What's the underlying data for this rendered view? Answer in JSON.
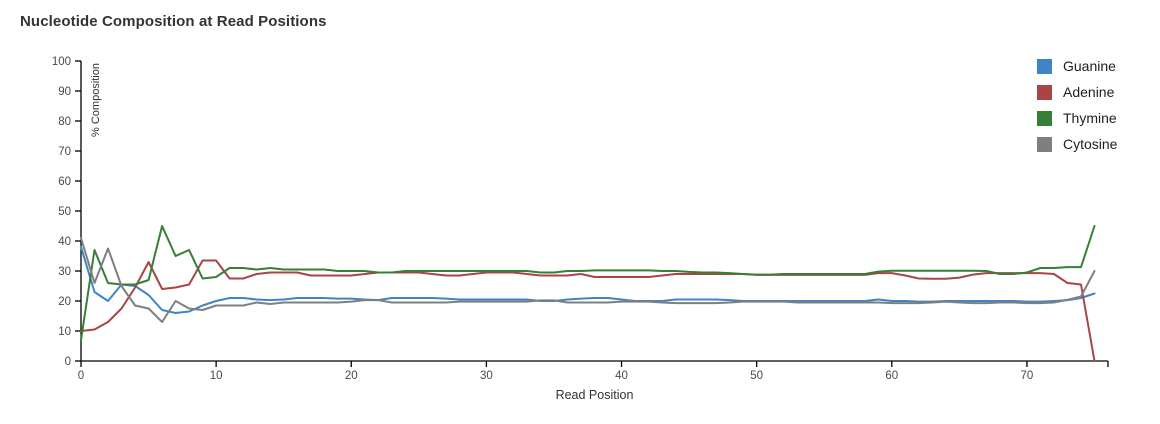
{
  "header": {
    "title": "Nucleotide Composition at Read Positions"
  },
  "axes": {
    "x": {
      "label": "Read Position",
      "ticks": [
        0,
        10,
        20,
        30,
        40,
        50,
        60,
        70
      ],
      "end_tick": 76,
      "min": 0,
      "max": 76
    },
    "y": {
      "label": "% Composition",
      "ticks": [
        0,
        10,
        20,
        30,
        40,
        50,
        60,
        70,
        80,
        90,
        100
      ],
      "min": 0,
      "max": 100
    }
  },
  "colors": {
    "axis_line": "#000000",
    "tick_text": "#494949",
    "axis_title_text": "#333333",
    "title_text": "#333333",
    "legend_text": "#212121"
  },
  "chart_data": {
    "type": "line",
    "title": "Nucleotide Composition at Read Positions",
    "xlabel": "Read Position",
    "ylabel": "% Composition",
    "xlim": [
      0,
      76
    ],
    "ylim": [
      0,
      100
    ],
    "grid": false,
    "legend_position": "top-right",
    "x": [
      0,
      1,
      2,
      3,
      4,
      5,
      6,
      7,
      8,
      9,
      10,
      11,
      12,
      13,
      14,
      15,
      16,
      17,
      18,
      19,
      20,
      21,
      22,
      23,
      24,
      25,
      26,
      27,
      28,
      29,
      30,
      31,
      32,
      33,
      34,
      35,
      36,
      37,
      38,
      39,
      40,
      41,
      42,
      43,
      44,
      45,
      46,
      47,
      48,
      49,
      50,
      51,
      52,
      53,
      54,
      55,
      56,
      57,
      58,
      59,
      60,
      61,
      62,
      63,
      64,
      65,
      66,
      67,
      68,
      69,
      70,
      71,
      72,
      73,
      74,
      75
    ],
    "series": [
      {
        "name": "Guanine",
        "color": "#3D85C6",
        "values": [
          38,
          23,
          20,
          25.5,
          25,
          22,
          17,
          16,
          16.5,
          18.5,
          20,
          21,
          21,
          20.5,
          20.3,
          20.5,
          21,
          21,
          21,
          20.8,
          20.8,
          20.5,
          20.3,
          21,
          21,
          21,
          21,
          20.8,
          20.5,
          20.5,
          20.5,
          20.5,
          20.5,
          20.5,
          20,
          20,
          20.5,
          20.8,
          21,
          21,
          20.5,
          20,
          20,
          20,
          20.5,
          20.5,
          20.5,
          20.5,
          20.3,
          20,
          20,
          20,
          20,
          20,
          20,
          20,
          20,
          20,
          20,
          20.5,
          20,
          20,
          19.8,
          19.8,
          20,
          20,
          20,
          20,
          20,
          20,
          19.8,
          19.8,
          20,
          20.3,
          21,
          22.5
        ]
      },
      {
        "name": "Adenine",
        "color": "#A94545",
        "values": [
          10,
          10.5,
          13,
          17.5,
          24.5,
          33,
          24,
          24.5,
          25.5,
          33.5,
          33.5,
          27.5,
          27.5,
          29,
          29.5,
          29.5,
          29.5,
          28.5,
          28.5,
          28.5,
          28.5,
          29,
          29.5,
          29.5,
          29.5,
          29.5,
          29,
          28.5,
          28.5,
          29,
          29.5,
          29.5,
          29.5,
          29,
          28.5,
          28.5,
          28.5,
          29,
          28,
          28,
          28,
          28,
          28,
          28.5,
          29,
          29,
          29,
          29,
          29,
          29,
          28.7,
          28.7,
          28.7,
          28.7,
          28.7,
          28.7,
          28.7,
          28.7,
          28.7,
          29.3,
          29.3,
          28.5,
          27.5,
          27.4,
          27.4,
          27.8,
          28.8,
          29.3,
          29.3,
          29.3,
          29.3,
          29.3,
          29,
          26,
          25.5,
          0
        ]
      },
      {
        "name": "Thymine",
        "color": "#377E37",
        "values": [
          7,
          37,
          26,
          25.5,
          25.5,
          27,
          45,
          35,
          37,
          27.5,
          28,
          31,
          31,
          30.5,
          31,
          30.5,
          30.5,
          30.5,
          30.5,
          30,
          30,
          30,
          29.5,
          29.5,
          30,
          30,
          30,
          30,
          30,
          30,
          30,
          30,
          30,
          30,
          29.5,
          29.5,
          30,
          30,
          30.2,
          30.2,
          30.2,
          30.2,
          30.2,
          30,
          30,
          29.7,
          29.5,
          29.5,
          29.3,
          29,
          28.8,
          28.8,
          29,
          29,
          29,
          29,
          29,
          29,
          29,
          29.8,
          30.1,
          30.1,
          30.1,
          30.1,
          30.1,
          30.1,
          30.1,
          30,
          29,
          29,
          29.5,
          31,
          31,
          31.3,
          31.3,
          45
        ]
      },
      {
        "name": "Cytosine",
        "color": "#7F7F7F",
        "values": [
          41,
          26,
          37.5,
          25,
          18.5,
          17.5,
          13,
          20,
          17.5,
          17,
          18.5,
          18.5,
          18.5,
          19.5,
          19,
          19.5,
          19.5,
          19.5,
          19.5,
          19.5,
          19.8,
          20.3,
          20.3,
          19.5,
          19.5,
          19.5,
          19.5,
          19.5,
          19.8,
          19.8,
          19.8,
          19.8,
          19.8,
          19.8,
          20.2,
          20.2,
          19.5,
          19.5,
          19.5,
          19.5,
          19.8,
          19.8,
          19.8,
          19.5,
          19.3,
          19.3,
          19.3,
          19.3,
          19.5,
          19.8,
          19.8,
          19.8,
          19.8,
          19.5,
          19.5,
          19.5,
          19.5,
          19.5,
          19.5,
          19.5,
          19.3,
          19.3,
          19.3,
          19.5,
          19.8,
          19.5,
          19.3,
          19.3,
          19.5,
          19.5,
          19.3,
          19.3,
          19.5,
          20.4,
          21.5,
          30
        ]
      }
    ]
  }
}
